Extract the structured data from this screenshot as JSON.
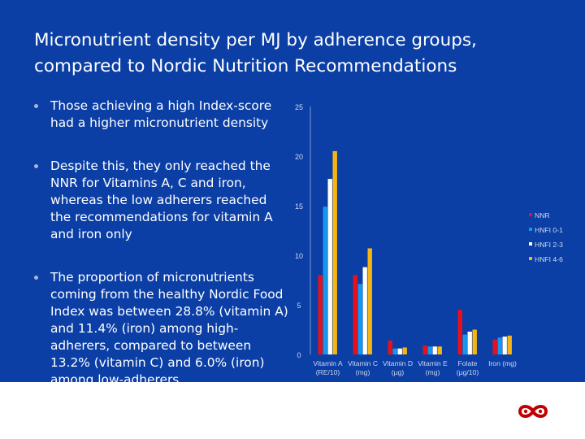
{
  "slide": {
    "title_line1": "Micronutrient density per MJ by adherence groups,",
    "title_line2": "compared to Nordic Nutrition Recommendations",
    "bullets": [
      "Those achieving a high Index-score had a higher micronutrient density",
      "Despite this, they only reached the NNR for Vitamins A, C and iron, whereas the low adherers reached the recommendations for vitamin A and iron only",
      "The proportion of micronutrients coming from the healthy Nordic Food Index was between 28.8% (vitamin A) and 11.4% (iron) among high-adherers, compared to between 13.2% (vitamin C) and 6.0% (iron) among low-adherers"
    ]
  },
  "colors": {
    "background": "#0b3fa6",
    "text": "#ffffff",
    "logo": "#c00000"
  },
  "logo": {
    "icon": "infinity-logo-icon"
  },
  "chart_data": {
    "type": "bar",
    "title": "",
    "xlabel": "",
    "ylabel": "",
    "ylim": [
      0,
      25
    ],
    "yticks": [
      "0",
      "5",
      "10",
      "15",
      "20",
      "25"
    ],
    "grid": false,
    "legend_position": "right",
    "categories": [
      [
        "Vitamin A",
        "(RE/10)"
      ],
      [
        "Vitamin C",
        "(mg)"
      ],
      [
        "Vitamin D",
        "(µg)"
      ],
      [
        "Vitamin E",
        "(mg)"
      ],
      [
        "Folate",
        "(µg/10)"
      ],
      [
        "Iron (mg)",
        ""
      ]
    ],
    "series": [
      {
        "name": "NNR",
        "color": "#e8101a",
        "values": [
          8,
          8,
          1.4,
          0.9,
          4.5,
          1.5
        ]
      },
      {
        "name": "HNFI 0-1",
        "color": "#1797f0",
        "values": [
          14.9,
          7.1,
          0.6,
          0.8,
          2.0,
          1.7
        ]
      },
      {
        "name": "HNFI 2-3",
        "color": "#ffffff",
        "values": [
          17.7,
          8.8,
          0.6,
          0.8,
          2.3,
          1.8
        ]
      },
      {
        "name": "HNFI 4-6",
        "color": "#f7b512",
        "values": [
          20.5,
          10.7,
          0.7,
          0.8,
          2.5,
          1.9
        ]
      }
    ]
  }
}
